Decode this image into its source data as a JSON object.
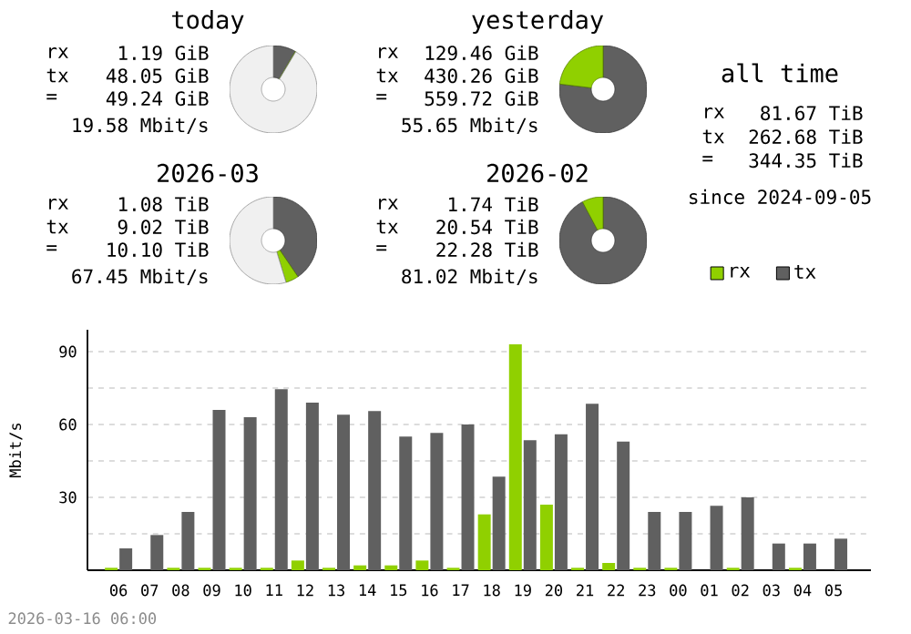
{
  "chart_data": [
    {
      "type": "donut",
      "title": "today",
      "annotations": [
        "rx",
        "1.19 GiB",
        "tx",
        "48.05 GiB",
        "=",
        "49.24 GiB",
        "19.58 Mbit/s"
      ],
      "categories": [
        null,
        null,
        null
      ],
      "values": [
        8.4,
        0.2,
        91.4
      ],
      "colors": [
        "#606060",
        "#90d000",
        "#f0f0f0"
      ]
    },
    {
      "type": "donut",
      "title": "yesterday",
      "annotations": [
        "rx",
        "129.46 GiB",
        "tx",
        "430.26 GiB",
        "=",
        "559.72 GiB",
        "55.65 Mbit/s"
      ],
      "categories": [
        null,
        null
      ],
      "values": [
        76.9,
        23.1
      ],
      "colors": [
        "#606060",
        "#90d000"
      ]
    },
    {
      "type": "other",
      "title": "all time",
      "annotations": [
        "rx",
        "81.67 TiB",
        "tx",
        "262.68 TiB",
        "=",
        "344.35 TiB",
        "since 2024-09-05"
      ]
    },
    {
      "type": "donut",
      "title": "2026-03",
      "annotations": [
        "rx",
        "1.08 TiB",
        "tx",
        "9.02 TiB",
        "=",
        "10.10 TiB",
        "67.45 Mbit/s"
      ],
      "categories": [
        null,
        null,
        null
      ],
      "values": [
        40.5,
        4.8,
        54.7
      ],
      "colors": [
        "#606060",
        "#90d000",
        "#f0f0f0"
      ]
    },
    {
      "type": "donut",
      "title": "2026-02",
      "annotations": [
        "rx",
        "1.74 TiB",
        "tx",
        "20.54 TiB",
        "=",
        "22.28 TiB",
        "81.02 Mbit/s"
      ],
      "categories": [
        null,
        null
      ],
      "values": [
        92.2,
        7.8
      ],
      "colors": [
        "#606060",
        "#90d000"
      ]
    },
    {
      "type": "bar",
      "ylabel": "Mbit/s",
      "categories": [
        "06",
        "07",
        "08",
        "09",
        "10",
        "11",
        "12",
        "13",
        "14",
        "15",
        "16",
        "17",
        "18",
        "19",
        "20",
        "21",
        "22",
        "23",
        "00",
        "01",
        "02",
        "03",
        "04",
        "05"
      ],
      "series": [
        {
          "name": "rx",
          "color": "#90d000",
          "values": [
            1,
            0,
            1,
            1,
            1,
            1,
            4,
            1,
            2,
            2,
            4,
            1,
            23,
            93,
            27,
            1,
            3,
            1,
            1,
            0,
            1,
            0,
            1,
            0
          ]
        },
        {
          "name": "tx",
          "color": "#606060",
          "values": [
            9,
            14.5,
            24,
            66,
            63,
            74.5,
            69,
            64,
            65.5,
            55,
            56.5,
            60,
            38.5,
            53.5,
            56,
            68.5,
            53,
            24,
            24,
            26.5,
            30,
            11,
            11,
            13
          ]
        }
      ],
      "ylim": [
        0,
        99
      ],
      "yticks": [
        {
          "value": 15,
          "label": null
        },
        30,
        {
          "value": 45,
          "label": null
        },
        60,
        {
          "value": 75,
          "label": null
        },
        90
      ],
      "grid": "y",
      "legend": "top right",
      "annotations": [
        "2026-03-16 06:00"
      ]
    }
  ]
}
